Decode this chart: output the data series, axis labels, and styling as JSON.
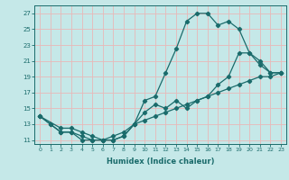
{
  "xlabel": "Humidex (Indice chaleur)",
  "ylabel": "",
  "bg_color": "#c5e8e8",
  "grid_color": "#e8b8b8",
  "line_color": "#1a6b6b",
  "xticks": [
    0,
    1,
    2,
    3,
    4,
    5,
    6,
    7,
    8,
    9,
    10,
    11,
    12,
    13,
    14,
    15,
    16,
    17,
    18,
    19,
    20,
    21,
    22,
    23
  ],
  "yticks": [
    11,
    13,
    15,
    17,
    19,
    21,
    23,
    25,
    27
  ],
  "line1_x": [
    0,
    1,
    2,
    3,
    4,
    5,
    6,
    7,
    8,
    9,
    10,
    11,
    12,
    13,
    14,
    15,
    16,
    17,
    18,
    19,
    20,
    21,
    22,
    23
  ],
  "line1_y": [
    14,
    13,
    12,
    12,
    11,
    11,
    11,
    11,
    11.5,
    13,
    16,
    16.5,
    19.5,
    22.5,
    26,
    27,
    27,
    25.5,
    26,
    25,
    22,
    20.5,
    19.5,
    19.5
  ],
  "line2_x": [
    0,
    2,
    3,
    4,
    5,
    6,
    7,
    8,
    9,
    10,
    11,
    12,
    13,
    14,
    15,
    16,
    17,
    18,
    19,
    20,
    21,
    22,
    23
  ],
  "line2_y": [
    14,
    12.5,
    12.5,
    12,
    11.5,
    11,
    11.5,
    12,
    13,
    14.5,
    15.5,
    15,
    16,
    15,
    16,
    16.5,
    18,
    19,
    22,
    22,
    21,
    19.5,
    19.5
  ],
  "line3_x": [
    0,
    1,
    2,
    3,
    4,
    5,
    6,
    7,
    8,
    9,
    10,
    11,
    12,
    13,
    14,
    15,
    16,
    17,
    18,
    19,
    20,
    21,
    22,
    23
  ],
  "line3_y": [
    14,
    13,
    12,
    12,
    11.5,
    11,
    11,
    11,
    11.5,
    13,
    13.5,
    14,
    14.5,
    15,
    15.5,
    16,
    16.5,
    17,
    17.5,
    18,
    18.5,
    19,
    19,
    19.5
  ]
}
